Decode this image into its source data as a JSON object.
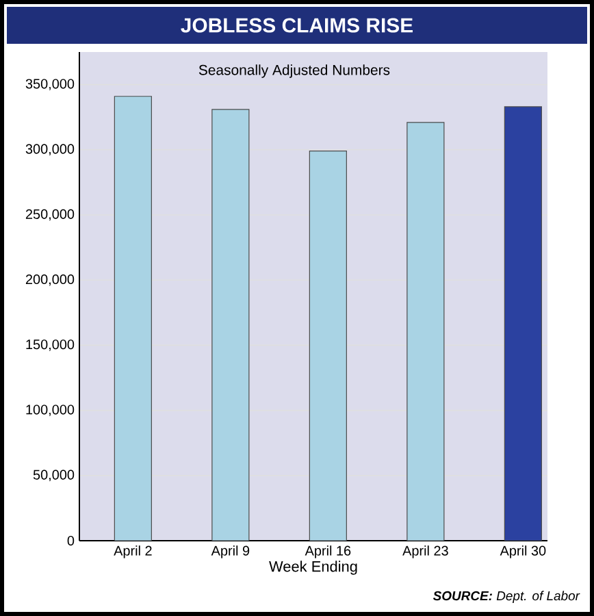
{
  "chart_data": {
    "type": "bar",
    "title": "JOBLESS CLAIMS RISE",
    "subtitle": "Seasonally Adjusted Numbers",
    "xlabel": "Week Ending",
    "categories": [
      "April 2",
      "April 9",
      "April 16",
      "April 23",
      "April 30"
    ],
    "values": [
      341000,
      331000,
      299000,
      321000,
      333000
    ],
    "colors": [
      "#a9d3e4",
      "#a9d3e4",
      "#a9d3e4",
      "#a9d3e4",
      "#2b41a0"
    ],
    "ylim": [
      0,
      375000
    ],
    "yticks": [
      {
        "value": 0,
        "label": "0"
      },
      {
        "value": 50000,
        "label": "50,000"
      },
      {
        "value": 100000,
        "label": "100,000"
      },
      {
        "value": 150000,
        "label": "150,000"
      },
      {
        "value": 200000,
        "label": "200,000"
      },
      {
        "value": 250000,
        "label": "250,000"
      },
      {
        "value": 300000,
        "label": "300,000"
      },
      {
        "value": 350000,
        "label": "350,000"
      }
    ],
    "grid": "y",
    "annotations": [
      "**SOURCE:** Dept. of Labor"
    ]
  }
}
